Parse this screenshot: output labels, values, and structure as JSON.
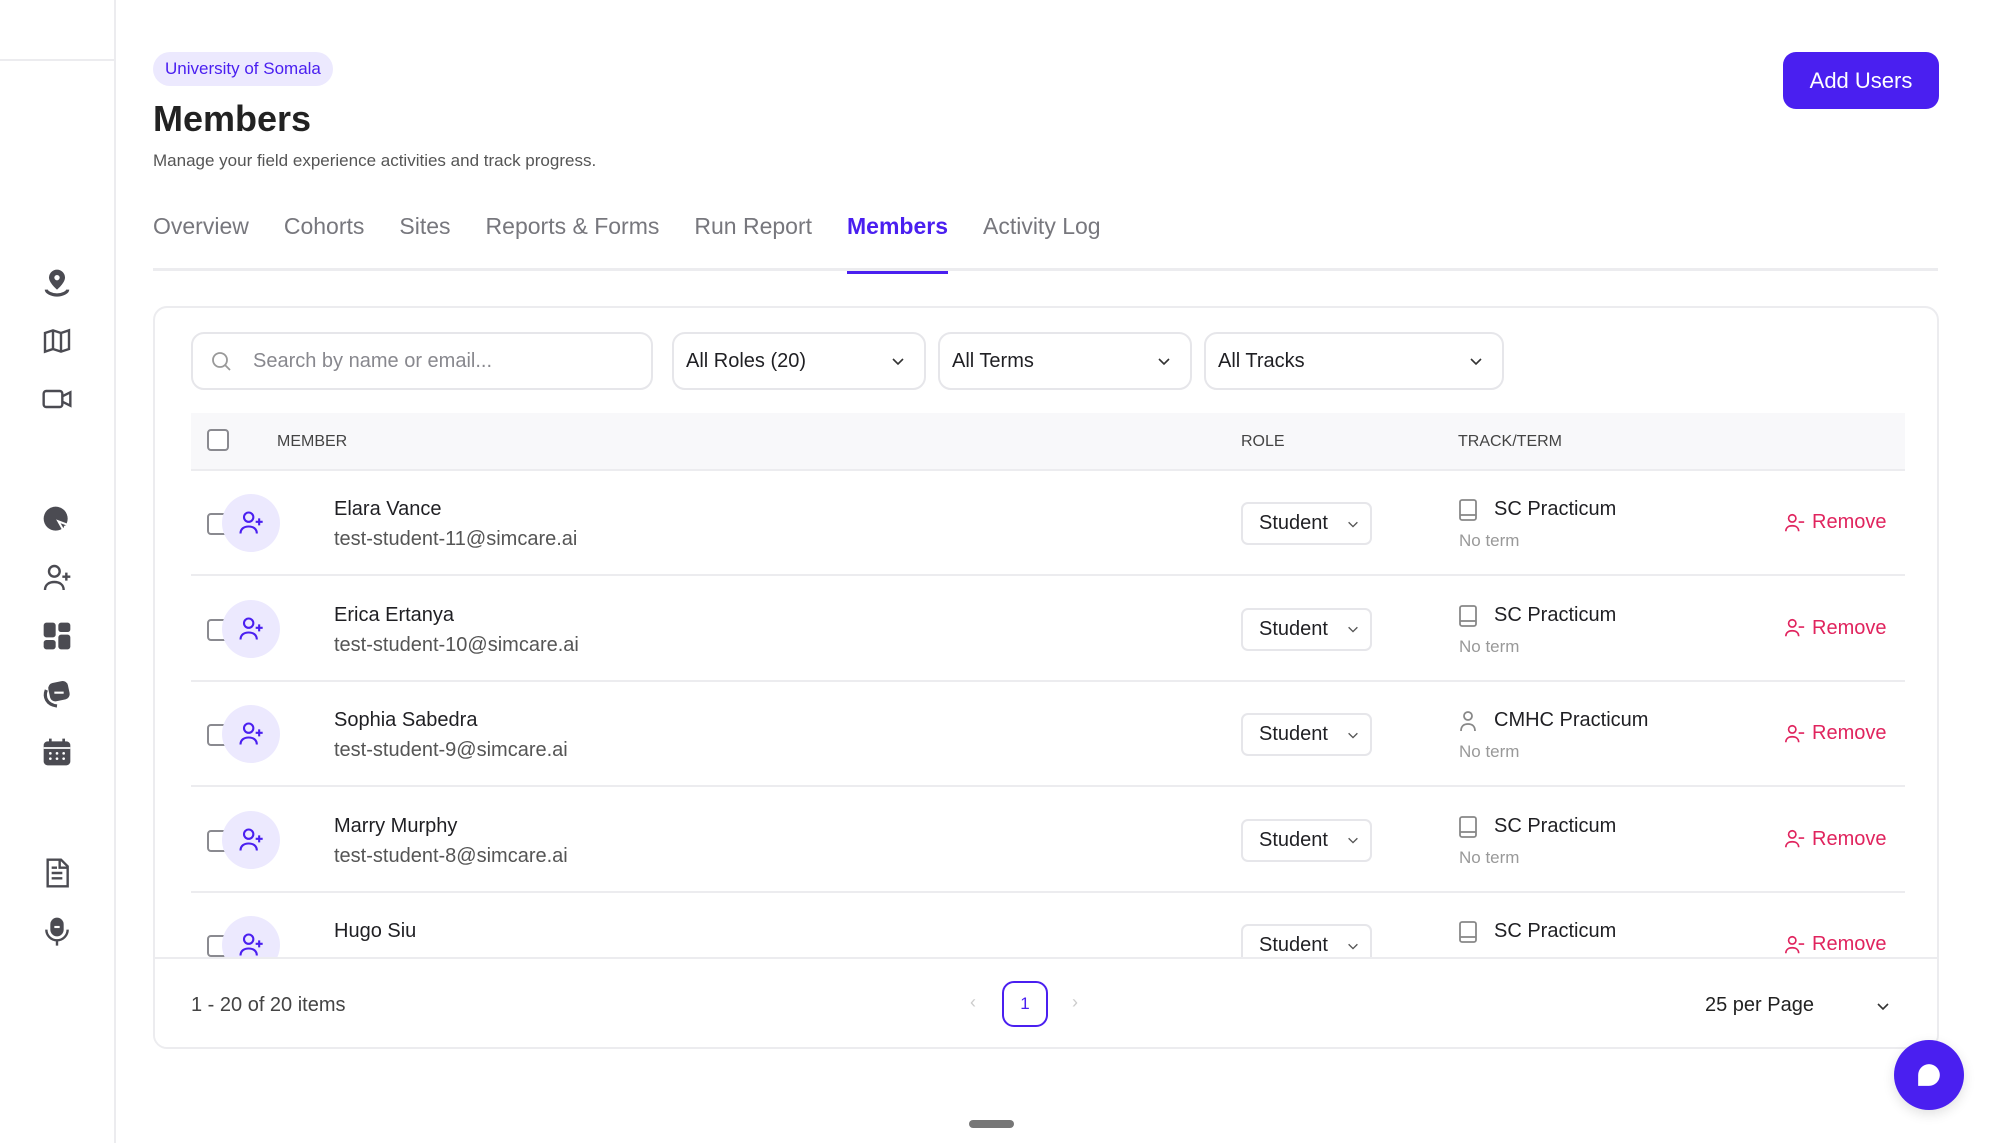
{
  "org_badge": "University of Somala",
  "page_title": "Members",
  "page_subtitle": "Manage your field experience activities and track progress.",
  "add_users_label": "Add Users",
  "tabs": [
    {
      "label": "Overview"
    },
    {
      "label": "Cohorts"
    },
    {
      "label": "Sites"
    },
    {
      "label": "Reports & Forms"
    },
    {
      "label": "Run Report"
    },
    {
      "label": "Members",
      "active": true
    },
    {
      "label": "Activity Log"
    }
  ],
  "sidebar": {
    "icons": [
      "location-pin-icon",
      "map-icon",
      "video-icon",
      "chat-send-icon",
      "add-user-icon",
      "dashboard-grid-icon",
      "cards-icon",
      "calendar-icon",
      "document-icon",
      "microphone-icon"
    ]
  },
  "filters": {
    "search_placeholder": "Search by name or email...",
    "roles": "All Roles (20)",
    "terms": "All Terms",
    "tracks": "All Tracks"
  },
  "table": {
    "headers": {
      "member": "MEMBER",
      "role": "ROLE",
      "track_term": "TRACK/TERM"
    },
    "remove_label": "Remove",
    "rows": [
      {
        "name": "Elara Vance",
        "email": "test-student-11@simcare.ai",
        "role": "Student",
        "track": "SC Practicum",
        "track_icon": "book",
        "term": "No term"
      },
      {
        "name": "Erica Ertanya",
        "email": "test-student-10@simcare.ai",
        "role": "Student",
        "track": "SC Practicum",
        "track_icon": "book",
        "term": "No term"
      },
      {
        "name": "Sophia Sabedra",
        "email": "test-student-9@simcare.ai",
        "role": "Student",
        "track": "CMHC Practicum",
        "track_icon": "person",
        "term": "No term"
      },
      {
        "name": "Marry Murphy",
        "email": "test-student-8@simcare.ai",
        "role": "Student",
        "track": "SC Practicum",
        "track_icon": "book",
        "term": "No term"
      },
      {
        "name": "Hugo Siu",
        "email": "",
        "role": "Student",
        "track": "SC Practicum",
        "track_icon": "book",
        "term": ""
      }
    ]
  },
  "pagination": {
    "summary": "1 - 20 of 20 items",
    "current_page": "1",
    "per_page": "25 per Page"
  },
  "colors": {
    "accent": "#4a1ff0",
    "danger": "#e0245e",
    "badge_bg": "#ece9fe"
  }
}
